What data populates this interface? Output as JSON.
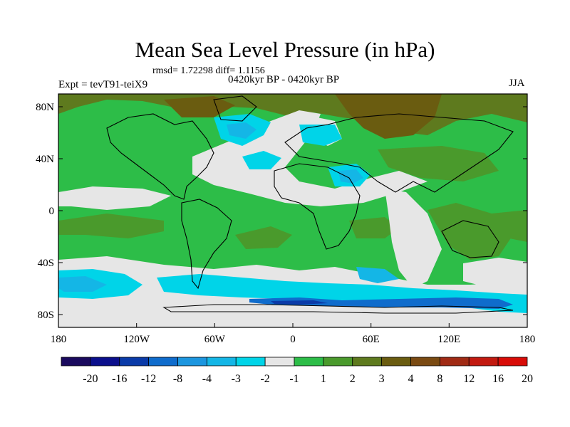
{
  "title": "Mean Sea Level Pressure (in hPa)",
  "stats": "rmsd= 1.72298 diff= 1.1156",
  "experiment": "Expt = tevT91-teiX9",
  "period": "0420kyr BP - 0420kyr BP",
  "season": "JJA",
  "lat_ticks": [
    "80N",
    "40N",
    "0",
    "40S",
    "80S"
  ],
  "lon_ticks": [
    "180",
    "120W",
    "60W",
    "0",
    "60E",
    "120E",
    "180"
  ],
  "colorbar": {
    "colors": [
      "#1a0a5e",
      "#0b0f8c",
      "#0a3aa8",
      "#0f6ccc",
      "#1c96df",
      "#14b6e6",
      "#00d4e8",
      "#e6e6e6",
      "#2dbd48",
      "#4a9a2c",
      "#5e7a1e",
      "#6a5c10",
      "#7a4a12",
      "#a02a14",
      "#c21a10",
      "#d80c08"
    ],
    "labels": [
      "-20",
      "-16",
      "-12",
      "-8",
      "-4",
      "-3",
      "-2",
      "-1",
      "1",
      "2",
      "3",
      "4",
      "8",
      "12",
      "16",
      "20"
    ]
  },
  "legend_categories": {
    "weak_neg": "#14b6e6",
    "neg": "#00d4e8",
    "near_zero": "#e6e6e6",
    "pos_small": "#2dbd48",
    "pos_med": "#4a9a2c",
    "pos_large": "#6a5c10"
  }
}
